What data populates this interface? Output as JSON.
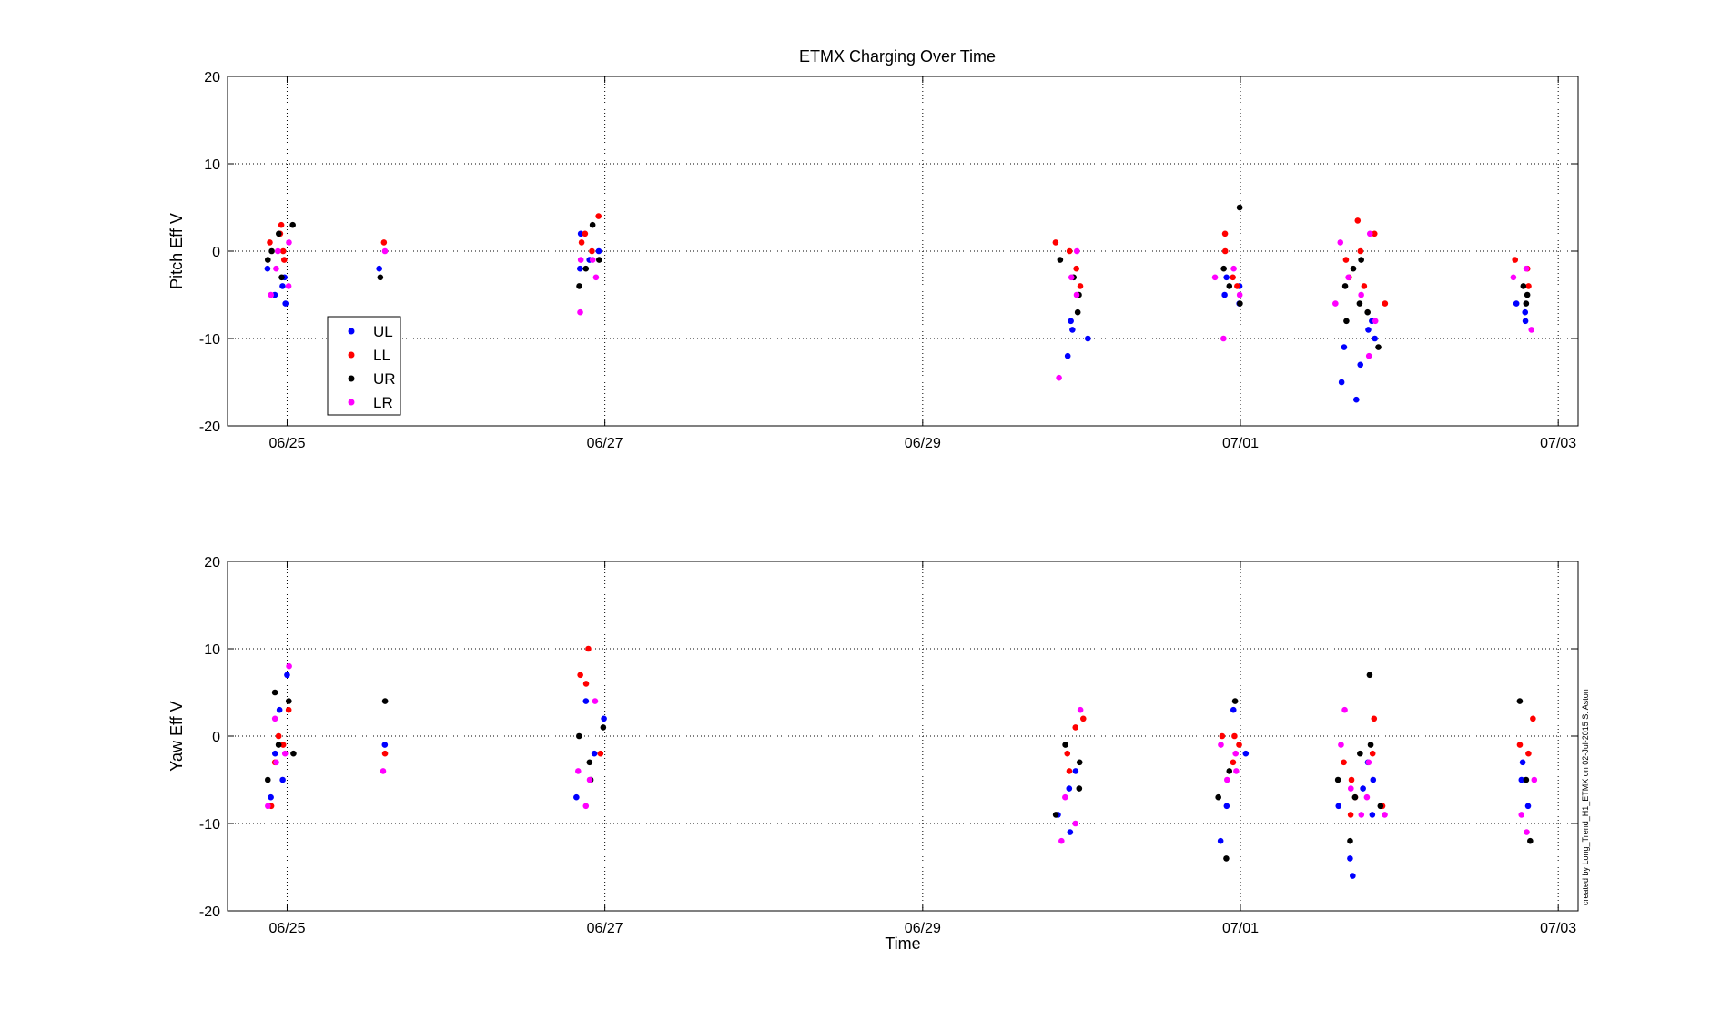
{
  "figure": {
    "title": "ETMX Charging Over Time",
    "credit": "created by Long_Trend_H1_ETMX on 02-Jul-2015 S. Aston"
  },
  "chart_data": [
    {
      "type": "scatter",
      "title": "ETMX Charging Over Time",
      "xlabel": "",
      "ylabel": "Pitch Eff V",
      "xlim": [
        "2015-06-24T15:00",
        "2015-07-03T03:00"
      ],
      "ylim": [
        -20,
        20
      ],
      "xticks": [
        "06/25",
        "06/27",
        "06/29",
        "07/01",
        "07/03"
      ],
      "yticks": [
        "-20",
        "-10",
        "0",
        "10",
        "20"
      ],
      "grid": true,
      "legend": "bottom-left",
      "series": [
        {
          "name": "UL",
          "color": "#0000ff",
          "x": [
            "06/24 22:00",
            "06/24 22:30",
            "06/24 23:00",
            "06/24 23:30",
            "06/25 00:00",
            "06/25 14:00",
            "06/26 20:00",
            "06/26 21:00",
            "06/26 22:00",
            "06/26 23:00",
            "06/29 21:00",
            "06/29 22:00",
            "06/29 23:00",
            "06/30 00:00",
            "06/30 21:00",
            "06/30 22:00",
            "06/30 23:00",
            "07/01 00:00",
            "07/01 15:00",
            "07/01 16:00",
            "07/01 17:00",
            "07/01 18:00",
            "07/01 19:00",
            "07/01 20:00",
            "07/01 21:00",
            "07/02 18:00",
            "07/02 19:00",
            "07/02 20:00"
          ],
          "y": [
            -2,
            -4,
            -5,
            -3,
            -6,
            -2,
            -2,
            2,
            -1,
            0,
            -12,
            -9,
            -8,
            -10,
            -5,
            -3,
            -6,
            -4,
            -15,
            -11,
            -17,
            -13,
            -9,
            -8,
            -10,
            -6,
            -7,
            -8
          ]
        },
        {
          "name": "LL",
          "color": "#ff0000",
          "x": [
            "06/24 22:00",
            "06/24 22:30",
            "06/24 23:00",
            "06/24 23:30",
            "06/25 00:00",
            "06/25 14:00",
            "06/26 20:00",
            "06/26 21:00",
            "06/26 22:00",
            "06/26 23:00",
            "06/29 21:00",
            "06/29 22:00",
            "06/29 23:00",
            "06/30 00:00",
            "06/30 21:00",
            "06/30 22:00",
            "06/30 23:00",
            "07/01 00:00",
            "07/01 15:00",
            "07/01 16:00",
            "07/01 17:00",
            "07/01 18:00",
            "07/01 19:00",
            "07/01 20:00",
            "07/01 21:00",
            "07/02 18:00",
            "07/02 19:00",
            "07/02 20:00"
          ],
          "y": [
            1,
            2,
            3,
            0,
            -1,
            1,
            1,
            2,
            0,
            4,
            1,
            0,
            -2,
            -4,
            2,
            0,
            -3,
            -4,
            -1,
            -3,
            3.5,
            -4,
            0,
            2,
            -6,
            -1,
            -4,
            -2
          ]
        },
        {
          "name": "UR",
          "color": "#000000",
          "x": [
            "06/24 22:00",
            "06/24 22:30",
            "06/24 23:00",
            "06/24 23:30",
            "06/25 00:00",
            "06/25 14:00",
            "06/26 20:00",
            "06/26 21:00",
            "06/26 22:00",
            "06/26 23:00",
            "06/29 21:00",
            "06/29 22:00",
            "06/29 23:00",
            "06/30 00:00",
            "06/30 21:00",
            "06/30 22:00",
            "06/30 23:00",
            "07/01 00:00",
            "07/01 15:00",
            "07/01 16:00",
            "07/01 17:00",
            "07/01 18:00",
            "07/01 19:00",
            "07/01 20:00",
            "07/01 21:00",
            "07/02 18:00",
            "07/02 19:00",
            "07/02 20:00"
          ],
          "y": [
            -1,
            0,
            2,
            -3,
            3,
            -3,
            -4,
            -2,
            3,
            -1,
            -1,
            -3,
            -5,
            -7,
            -2,
            -4,
            5,
            -6,
            -4,
            -8,
            -2,
            -6,
            -1,
            -7,
            -11,
            -4,
            -6,
            -5
          ]
        },
        {
          "name": "LR",
          "color": "#ff00ff",
          "x": [
            "06/24 22:00",
            "06/24 22:30",
            "06/24 23:00",
            "06/24 23:30",
            "06/25 00:00",
            "06/25 14:00",
            "06/26 20:00",
            "06/26 21:00",
            "06/26 22:00",
            "06/26 23:00",
            "06/29 21:00",
            "06/29 22:00",
            "06/29 23:00",
            "06/30 00:00",
            "06/30 21:00",
            "06/30 22:00",
            "06/30 23:00",
            "07/01 00:00",
            "07/01 15:00",
            "07/01 16:00",
            "07/01 17:00",
            "07/01 18:00",
            "07/01 19:00",
            "07/01 20:00",
            "07/01 21:00",
            "07/02 18:00",
            "07/02 19:00",
            "07/02 20:00"
          ],
          "y": [
            -5,
            -2,
            0,
            1,
            -4,
            0,
            -1,
            -7,
            -3,
            -1,
            -14.5,
            -3,
            -5,
            0,
            -3,
            -10,
            -2,
            -5,
            -6,
            1,
            -3,
            -5,
            2,
            -12,
            -8,
            -3,
            -9,
            -2
          ]
        }
      ]
    },
    {
      "type": "scatter",
      "title": "",
      "xlabel": "Time",
      "ylabel": "Yaw Eff V",
      "xlim": [
        "2015-06-24T15:00",
        "2015-07-03T03:00"
      ],
      "ylim": [
        -20,
        20
      ],
      "xticks": [
        "06/25",
        "06/27",
        "06/29",
        "07/01",
        "07/03"
      ],
      "yticks": [
        "-20",
        "-10",
        "0",
        "10",
        "20"
      ],
      "grid": true,
      "series": [
        {
          "name": "UL",
          "color": "#0000ff",
          "x": [
            "06/24 22:00",
            "06/24 22:30",
            "06/24 23:00",
            "06/24 23:30",
            "06/25 00:00",
            "06/25 14:00",
            "06/26 20:00",
            "06/26 21:00",
            "06/26 22:00",
            "06/26 23:00",
            "06/29 21:00",
            "06/29 22:00",
            "06/29 23:00",
            "06/30 00:00",
            "06/30 21:00",
            "06/30 22:00",
            "06/30 23:00",
            "07/01 00:00",
            "07/01 15:00",
            "07/01 16:00",
            "07/01 17:00",
            "07/01 18:00",
            "07/01 19:00",
            "07/01 20:00",
            "07/01 21:00",
            "07/02 18:00",
            "07/02 19:00",
            "07/02 20:00"
          ],
          "y": [
            -7,
            -5,
            -2,
            3,
            7,
            -1,
            -7,
            4,
            -2,
            2,
            -9,
            -11,
            -6,
            -4,
            -12,
            -8,
            3,
            -2,
            -8,
            -16,
            -14,
            -6,
            -9,
            -3,
            -5,
            -5,
            -3,
            -8
          ]
        },
        {
          "name": "LL",
          "color": "#ff0000",
          "x": [
            "06/24 22:00",
            "06/24 22:30",
            "06/24 23:00",
            "06/24 23:30",
            "06/25 00:00",
            "06/25 14:00",
            "06/26 20:00",
            "06/26 21:00",
            "06/26 22:00",
            "06/26 23:00",
            "06/29 21:00",
            "06/29 22:00",
            "06/29 23:00",
            "06/30 00:00",
            "06/30 21:00",
            "06/30 22:00",
            "06/30 23:00",
            "07/01 00:00",
            "07/01 15:00",
            "07/01 16:00",
            "07/01 17:00",
            "07/01 18:00",
            "07/01 19:00",
            "07/01 20:00",
            "07/01 21:00",
            "07/02 18:00",
            "07/02 19:00",
            "07/02 20:00"
          ],
          "y": [
            -3,
            -8,
            0,
            3,
            -1,
            -2,
            7,
            10,
            6,
            -2,
            -2,
            -4,
            1,
            2,
            0,
            -3,
            -1,
            0,
            -3,
            -5,
            -9,
            -7,
            -2,
            2,
            -8,
            -1,
            -2,
            2
          ]
        },
        {
          "name": "UR",
          "color": "#000000",
          "x": [
            "06/24 22:00",
            "06/24 22:30",
            "06/24 23:00",
            "06/24 23:30",
            "06/25 00:00",
            "06/25 14:00",
            "06/26 20:00",
            "06/26 21:00",
            "06/26 22:00",
            "06/26 23:00",
            "06/29 21:00",
            "06/29 22:00",
            "06/29 23:00",
            "06/30 00:00",
            "06/30 21:00",
            "06/30 22:00",
            "06/30 23:00",
            "07/01 00:00",
            "07/01 15:00",
            "07/01 16:00",
            "07/01 17:00",
            "07/01 18:00",
            "07/01 19:00",
            "07/01 20:00",
            "07/01 21:00",
            "07/02 18:00",
            "07/02 19:00",
            "07/02 20:00"
          ],
          "y": [
            -5,
            5,
            -1,
            4,
            -2,
            4,
            0,
            -5,
            -3,
            1,
            -9,
            -1,
            -6,
            -3,
            -7,
            -14,
            -4,
            4,
            -5,
            -12,
            -7,
            -2,
            7,
            -1,
            -8,
            4,
            -5,
            -12
          ]
        },
        {
          "name": "LR",
          "color": "#ff00ff",
          "x": [
            "06/24 22:00",
            "06/24 22:30",
            "06/24 23:00",
            "06/24 23:30",
            "06/25 00:00",
            "06/25 14:00",
            "06/26 20:00",
            "06/26 21:00",
            "06/26 22:00",
            "06/26 23:00",
            "06/29 21:00",
            "06/29 22:00",
            "06/29 23:00",
            "06/30 00:00",
            "06/30 21:00",
            "06/30 22:00",
            "06/30 23:00",
            "07/01 00:00",
            "07/01 15:00",
            "07/01 16:00",
            "07/01 17:00",
            "07/01 18:00",
            "07/01 19:00",
            "07/01 20:00",
            "07/01 21:00",
            "07/02 18:00",
            "07/02 19:00",
            "07/02 20:00"
          ],
          "y": [
            -8,
            2,
            -3,
            8,
            -2,
            -4,
            -4,
            -8,
            -5,
            4,
            -12,
            -7,
            3,
            -10,
            -1,
            -5,
            -4,
            -2,
            -1,
            3,
            -6,
            -9,
            -3,
            -7,
            -9,
            -9,
            -11,
            -5
          ]
        }
      ]
    }
  ]
}
